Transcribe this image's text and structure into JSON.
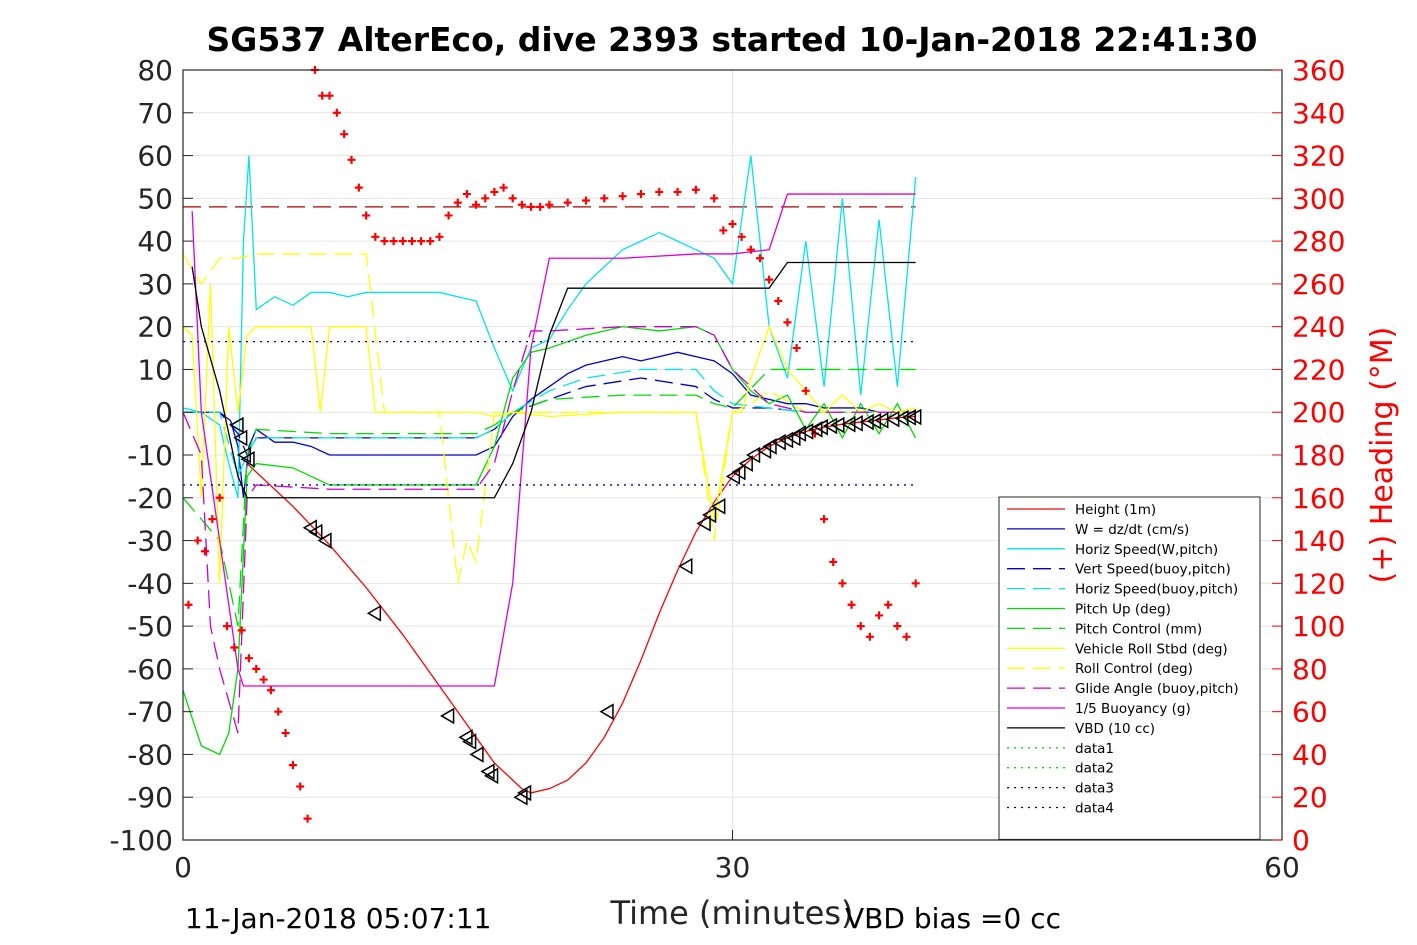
{
  "chart_data": {
    "type": "line",
    "title": "SG537 AlterEco, dive 2393 started 10-Jan-2018 22:41:30",
    "xlabel": "Time (minutes)",
    "ylabel": "",
    "y2label": "(+) Heading (°M)",
    "xlim": [
      0,
      60
    ],
    "ylim": [
      -100,
      80
    ],
    "y2lim": [
      0,
      360
    ],
    "xticks": [
      "0",
      "30",
      "60"
    ],
    "yticks": [
      "80",
      "70",
      "60",
      "50",
      "40",
      "30",
      "20",
      "10",
      "0",
      "-10",
      "-20",
      "-30",
      "-40",
      "-50",
      "-60",
      "-70",
      "-80",
      "-90",
      "-100"
    ],
    "y2ticks": [
      "360",
      "340",
      "320",
      "300",
      "280",
      "260",
      "240",
      "220",
      "200",
      "180",
      "160",
      "140",
      "120",
      "100",
      "80",
      "60",
      "40",
      "20",
      "0"
    ],
    "grid": true,
    "legend_position": "bottom-right",
    "footer_left": "11-Jan-2018 05:07:11",
    "footer_right": "VBD bias =0 cc",
    "colors": {
      "height": "#ff0000",
      "w": "#0000cd",
      "horiz": "#00e5e5",
      "pitch": "#00dd00",
      "roll": "#ffff00",
      "glide": "#cc00cc",
      "buoy": "#dd00dd",
      "vbd": "#000000",
      "heading": "#ff0000",
      "data3": "#000080"
    },
    "series": [
      {
        "name": "Height (1m)",
        "style": "solid",
        "color": "#ff0000",
        "x": [
          3.5,
          6,
          8,
          10,
          12,
          14,
          16,
          17,
          18,
          18.5,
          19,
          20,
          21,
          22,
          23,
          24,
          25,
          26,
          27,
          28,
          29,
          30,
          31,
          32,
          33,
          34,
          35,
          36,
          37,
          38,
          39,
          40
        ],
        "y": [
          -12,
          -22,
          -31,
          -41,
          -52,
          -64,
          -76,
          -82,
          -86,
          -88,
          -89,
          -88,
          -86,
          -82,
          -76,
          -68,
          -58,
          -47,
          -37,
          -28,
          -21,
          -15,
          -11,
          -8,
          -6,
          -4.5,
          -3.5,
          -2.8,
          -2.3,
          -1.8,
          -1.3,
          -1
        ]
      },
      {
        "name": "W = dz/dt (cm/s)",
        "style": "solid",
        "color": "#0000cd",
        "x": [
          0,
          1,
          2,
          2.6,
          3,
          3.3,
          3.6,
          4,
          5,
          6,
          7,
          8,
          9,
          10,
          12,
          14,
          16,
          17,
          18,
          19,
          20,
          21,
          22,
          23,
          24,
          25,
          26,
          27,
          28,
          29,
          30,
          31,
          32,
          33,
          34,
          35,
          36,
          37,
          38,
          39,
          40
        ],
        "y": [
          0,
          0,
          0,
          -2,
          -8,
          -20,
          -8,
          -4,
          -7,
          -7,
          -8,
          -10,
          -10,
          -10,
          -10,
          -10,
          -10,
          -8,
          -1,
          3,
          6,
          9,
          11,
          12,
          13,
          12,
          13,
          14,
          13,
          12,
          9,
          4,
          3,
          2,
          2,
          1,
          1,
          1,
          0,
          0,
          0
        ]
      },
      {
        "name": "Horiz Speed(W,pitch)",
        "style": "solid",
        "color": "#00e5e5",
        "x": [
          0,
          1,
          2,
          2.5,
          3,
          3.3,
          3.6,
          4,
          5,
          6,
          7,
          8,
          9,
          10,
          12,
          14,
          16,
          17,
          18,
          19,
          20,
          21,
          22,
          23,
          24,
          25,
          26,
          27,
          28,
          29,
          30,
          31,
          32,
          33,
          34,
          35,
          36,
          37,
          38,
          39,
          40
        ],
        "y": [
          1,
          0,
          -3,
          -12,
          -20,
          40,
          60,
          24,
          27,
          25,
          28,
          28,
          27,
          28,
          28,
          28,
          26,
          15,
          5,
          15,
          17,
          24,
          30,
          34,
          38,
          40,
          42,
          40,
          38,
          36,
          30,
          60,
          20,
          8,
          40,
          6,
          50,
          4,
          45,
          6,
          55
        ]
      },
      {
        "name": "Vert Speed(buoy,pitch)",
        "style": "dash",
        "color": "#0000cd",
        "x": [
          0,
          2,
          3,
          3.5,
          4,
          8,
          12,
          16,
          17,
          18,
          20,
          22,
          25,
          28,
          29,
          30,
          32,
          34,
          36,
          38,
          40
        ],
        "y": [
          0,
          0,
          -5,
          -10,
          -6,
          -6,
          -6,
          -6,
          -4,
          0,
          3,
          6,
          8,
          6,
          3,
          1,
          1,
          0,
          0,
          0,
          0
        ]
      },
      {
        "name": "Horiz Speed(buoy,pitch)",
        "style": "dash",
        "color": "#00e5e5",
        "x": [
          0,
          2,
          3,
          3.5,
          4,
          8,
          12,
          16,
          17,
          18,
          20,
          22,
          25,
          28,
          29,
          30,
          32,
          34,
          36,
          38,
          40
        ],
        "y": [
          0,
          0,
          -15,
          -10,
          -6,
          -6,
          -6,
          -6,
          -4,
          0,
          5,
          8,
          10,
          10,
          5,
          2,
          1,
          0,
          0,
          0,
          0
        ]
      },
      {
        "name": "Pitch Up (deg)",
        "style": "solid",
        "color": "#00dd00",
        "x": [
          0,
          1,
          2,
          2.5,
          3,
          3.5,
          4,
          6,
          8,
          10,
          12,
          14,
          16,
          17,
          18,
          19,
          20,
          22,
          24,
          26,
          28,
          29,
          30,
          31,
          32,
          33,
          34,
          35,
          36,
          37,
          38,
          39,
          40
        ],
        "y": [
          -65,
          -78,
          -80,
          -75,
          -60,
          -15,
          -12,
          -13,
          -17,
          -17,
          -17,
          -17,
          -17,
          -8,
          8,
          14,
          15,
          18,
          20,
          19,
          20,
          18,
          10,
          5,
          2,
          4,
          -4,
          2,
          -6,
          2,
          -5,
          2,
          -6
        ]
      },
      {
        "name": "Pitch Control (mm)",
        "style": "dash",
        "color": "#00dd00",
        "x": [
          0,
          2,
          3,
          3.5,
          4,
          8,
          12,
          16,
          17,
          18,
          20,
          24,
          28,
          29,
          30,
          32,
          34,
          36,
          38,
          40
        ],
        "y": [
          -20,
          -30,
          -50,
          -10,
          -4,
          -5,
          -5,
          -5,
          -3,
          0,
          3,
          4,
          4,
          2,
          1,
          10,
          10,
          10,
          10,
          10
        ]
      },
      {
        "name": "Vehicle Roll Stbd (deg)",
        "style": "solid",
        "color": "#ffff00",
        "x": [
          0,
          0.5,
          1,
          1.5,
          2,
          2.5,
          3,
          3.5,
          4,
          6,
          7,
          7.5,
          8,
          10,
          10.5,
          11,
          14,
          16,
          17,
          18,
          20,
          24,
          28,
          29,
          30,
          30.5,
          31,
          32,
          33,
          34,
          35,
          36,
          37,
          38,
          39,
          40
        ],
        "y": [
          20,
          18,
          -20,
          30,
          -40,
          20,
          0,
          18,
          20,
          20,
          20,
          0,
          20,
          20,
          0,
          0,
          0,
          0,
          -1,
          0,
          -1,
          0,
          0,
          -25,
          0,
          0,
          8,
          20,
          10,
          5,
          0,
          4,
          0,
          2,
          0,
          1
        ]
      },
      {
        "name": "Roll Control (deg)",
        "style": "dash",
        "color": "#ffff00",
        "x": [
          0,
          1,
          2,
          3,
          4,
          6,
          7,
          8,
          10,
          11,
          14,
          15,
          15.5,
          16,
          17,
          18,
          20,
          24,
          28,
          29,
          30,
          31,
          32,
          34,
          36,
          38,
          40
        ],
        "y": [
          37,
          30,
          36,
          36,
          37,
          37,
          37,
          37,
          37,
          0,
          0,
          -40,
          -30,
          -35,
          0,
          0,
          0,
          0,
          0,
          -30,
          0,
          2,
          5,
          0,
          0,
          0,
          0
        ]
      },
      {
        "name": "Glide Angle (buoy,pitch)",
        "style": "dash",
        "color": "#cc00cc",
        "x": [
          0,
          1,
          1.5,
          2,
          3,
          3.5,
          4,
          8,
          12,
          16,
          17,
          18,
          19,
          20,
          24,
          28,
          29,
          30,
          32,
          34,
          36,
          38,
          40
        ],
        "y": [
          0,
          -10,
          -50,
          -60,
          -75,
          -20,
          -17,
          -18,
          -18,
          -18,
          -12,
          5,
          19,
          19,
          20,
          20,
          18,
          10,
          2,
          0,
          0,
          0,
          0
        ]
      },
      {
        "name": "1/5 Buoyancy (g)",
        "style": "solid",
        "color": "#dd00dd",
        "x": [
          0.5,
          1,
          2,
          3,
          3.3,
          4,
          8,
          12,
          16,
          17,
          18,
          19,
          20,
          21,
          22,
          24,
          28,
          30,
          32,
          33,
          34,
          36,
          38,
          40
        ],
        "y": [
          47,
          0,
          -30,
          -60,
          -64,
          -64,
          -64,
          -64,
          -64,
          -64,
          -40,
          15,
          36,
          36,
          36,
          36,
          37,
          37,
          38,
          51,
          51,
          51,
          51,
          51
        ]
      },
      {
        "name": "VBD (10 cc)",
        "style": "solid",
        "color": "#000000",
        "x": [
          0.5,
          1,
          2,
          3,
          3.5,
          4,
          8,
          12,
          16,
          17,
          18,
          19,
          20,
          21,
          22,
          24,
          28,
          30,
          32,
          33,
          34,
          36,
          38,
          40
        ],
        "y": [
          34,
          20,
          5,
          -15,
          -20,
          -20,
          -20,
          -20,
          -20,
          -20,
          -12,
          0,
          18,
          29,
          29,
          29,
          29,
          29,
          29,
          35,
          35,
          35,
          35,
          35
        ]
      },
      {
        "name": "data1",
        "style": "dot",
        "color": "#00dd00",
        "x": [],
        "y": []
      },
      {
        "name": "data2",
        "style": "dot",
        "color": "#00dd00",
        "x": [],
        "y": []
      },
      {
        "name": "data3",
        "style": "dot",
        "color": "#000080",
        "x": [
          0,
          40
        ],
        "y": [
          16.5,
          16.5
        ]
      },
      {
        "name": "data4",
        "style": "dot",
        "color": "#000080",
        "x": [
          0,
          40
        ],
        "y": [
          -17,
          -17
        ]
      }
    ],
    "reference_line": {
      "style": "dash",
      "color": "#aa0000",
      "x": [
        0,
        40
      ],
      "y": [
        48,
        48
      ]
    },
    "heading": {
      "axis": "right",
      "marker": "+",
      "color": "#ff0000",
      "x": [
        0.3,
        0.8,
        1.2,
        1.6,
        2,
        2.4,
        2.8,
        3.2,
        3.6,
        4,
        4.4,
        4.8,
        5.2,
        5.6,
        6,
        6.4,
        6.8,
        7.2,
        7.6,
        8,
        8.4,
        8.8,
        9.2,
        9.6,
        10,
        10.5,
        11,
        11.5,
        12,
        12.5,
        13,
        13.5,
        14,
        14.5,
        15,
        15.5,
        16,
        16.5,
        17,
        17.5,
        18,
        18.5,
        19,
        19.5,
        20,
        21,
        22,
        23,
        24,
        25,
        26,
        27,
        28,
        29,
        29.5,
        30,
        30.5,
        31,
        31.5,
        32,
        32.5,
        33,
        33.5,
        34,
        34.5,
        35,
        35.5,
        36,
        36.5,
        37,
        37.5,
        38,
        38.5,
        39,
        39.5,
        40
      ],
      "y": [
        110,
        140,
        135,
        150,
        160,
        100,
        90,
        98,
        85,
        80,
        75,
        70,
        60,
        50,
        35,
        25,
        10,
        360,
        348,
        348,
        340,
        330,
        318,
        305,
        292,
        282,
        280,
        280,
        280,
        280,
        280,
        280,
        282,
        292,
        298,
        302,
        297,
        300,
        303,
        305,
        300,
        297,
        296,
        296,
        297,
        298,
        299,
        300,
        301,
        302,
        303,
        303,
        304,
        300,
        285,
        288,
        282,
        276,
        272,
        262,
        252,
        242,
        230,
        210,
        190,
        150,
        130,
        120,
        110,
        100,
        95,
        105,
        110,
        100,
        95,
        120
      ]
    },
    "markers": {
      "symbol": "triangle",
      "color": "#000000",
      "x": [
        3,
        3.2,
        3.4,
        3.6,
        7,
        7.3,
        7.8,
        10.5,
        14.5,
        15.5,
        15.7,
        16.1,
        16.7,
        16.9,
        18.5,
        18.7,
        23.2,
        27.5,
        28.5,
        28.8,
        29.3,
        30.1,
        30.4,
        30.8,
        31.2,
        31.8,
        32.1,
        32.6,
        33,
        33.4,
        33.7,
        34.1,
        34.6,
        34.9,
        35.4,
        35.8,
        36.4,
        36.8,
        37.4,
        37.8,
        38.2,
        38.8,
        39.3,
        39.7,
        40
      ],
      "y": [
        -3,
        -6,
        -10,
        -11,
        -27,
        -28,
        -30,
        -47,
        -71,
        -76,
        -77,
        -80,
        -84,
        -85,
        -90,
        -89,
        -70,
        -36,
        -26,
        -24,
        -22,
        -15,
        -14,
        -12,
        -10,
        -9,
        -8,
        -7,
        -6.5,
        -6,
        -5,
        -4.5,
        -4,
        -3.5,
        -3.2,
        -3,
        -2.8,
        -2.6,
        -2.3,
        -2.1,
        -1.9,
        -1.6,
        -1.4,
        -1.2,
        -1.1
      ]
    }
  }
}
